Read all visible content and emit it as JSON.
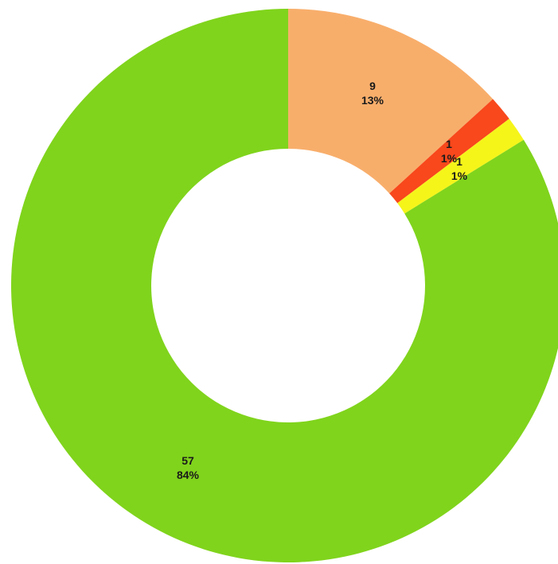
{
  "chart_data": {
    "type": "pie",
    "donut": true,
    "slices": [
      {
        "value": 9,
        "percent_label": "13%",
        "color": "#F8AE6B"
      },
      {
        "value": 1,
        "percent_label": "1%",
        "color": "#F8481C"
      },
      {
        "value": 1,
        "percent_label": "1%",
        "color": "#F5F51A"
      },
      {
        "value": 57,
        "percent_label": "84%",
        "color": "#80D41C"
      }
    ],
    "title": "",
    "legend": "none"
  }
}
